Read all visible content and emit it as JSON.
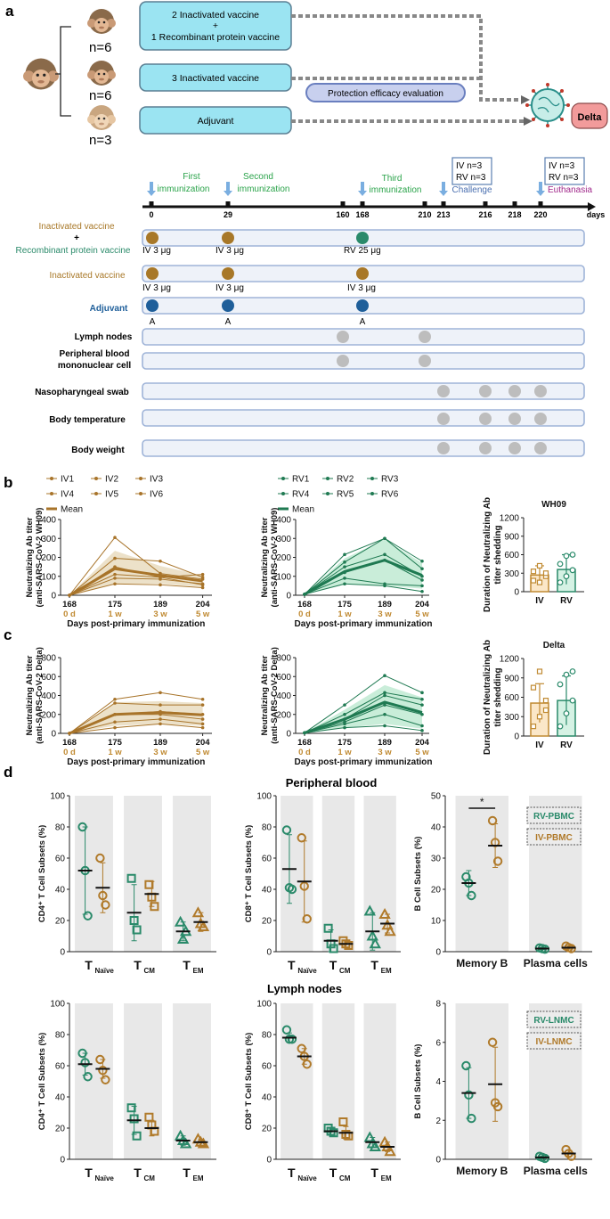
{
  "panels": {
    "a": "a",
    "b": "b",
    "c": "c",
    "d": "d"
  },
  "panel_a": {
    "groups": {
      "g1": "n=6",
      "g2": "n=6",
      "g3": "n=3"
    },
    "boxes": {
      "b1_line1": "2 Inactivated vaccine",
      "b1_line2": "+",
      "b1_line3": "1 Recombinant protein vaccine",
      "b2": "3 Inactivated vaccine",
      "b3": "Adjuvant",
      "protection": "Protection efficacy evaluation",
      "delta": "Delta"
    },
    "timeline": {
      "ticks": [
        "0",
        "29",
        "160",
        "168",
        "210",
        "213",
        "216",
        "218",
        "220",
        "days"
      ],
      "events": {
        "first_l1": "First",
        "first_l2": "immunization",
        "second_l1": "Second",
        "second_l2": "immunization",
        "third_l1": "Third",
        "third_l2": "immunization",
        "challenge": "Challenge",
        "euthanasia": "Euthanasia",
        "box1_l1": "IV n=3",
        "box1_l2": "RV n=3",
        "box2_l1": "IV n=3",
        "box2_l2": "RV n=3"
      }
    },
    "rows": {
      "r1_l1": "Inactivated vaccine",
      "r1_l2": "+",
      "r1_l3": "Recombinant protein vaccine",
      "r2": "Inactivated vaccine",
      "r3": "Adjuvant",
      "r4": "Lymph nodes",
      "r5_l1": "Peripheral blood",
      "r5_l2": "mononuclear cell",
      "r6": "Nasopharyngeal swab",
      "r7": "Body temperature",
      "r8": "Body weight"
    },
    "doses": {
      "iv3a": "IV 3 μg",
      "iv3b": "IV 3 μg",
      "rv25": "RV 25 μg",
      "iv3c": "IV 3 μg",
      "iv3d": "IV 3 μg",
      "iv3e": "IV 3 μg",
      "a1": "A",
      "a2": "A",
      "a3": "A"
    },
    "colors": {
      "inactivated": "#a87828",
      "recombinant": "#2a8a6a",
      "adjuvant": "#1f5f9a",
      "sample": "#bdbdbd"
    }
  },
  "legend_iv": [
    "IV1",
    "IV2",
    "IV3",
    "IV4",
    "IV5",
    "IV6"
  ],
  "legend_rv": [
    "RV1",
    "RV2",
    "RV3",
    "RV4",
    "RV5",
    "RV6"
  ],
  "mean_label": "Mean",
  "axes_text": {
    "ylabel_b": "Neutralizing Ab titer",
    "ylabel_b2": "(anti-SARS-CoV-2 WH09)",
    "ylabel_c": "Neutralizing Ab titer",
    "ylabel_c2": "(anti-SARS-CoV-2 Delta)",
    "xlabel": "Days post-primary immunization",
    "bar_ylabel1": "Duration of Neutralizing Ab",
    "bar_ylabel2": "titer shedding",
    "bar_title_b": "WH09",
    "bar_title_c": "Delta",
    "day_ticks": [
      "168",
      "175",
      "189",
      "204"
    ],
    "week_ticks": [
      "0 d",
      "1 w",
      "3 w",
      "5 w"
    ]
  },
  "panel_d_text": {
    "pb_title": "Peripheral blood",
    "ln_title": "Lymph nodes",
    "cd4": "CD4⁺ T Cell Subsets (%)",
    "cd8": "CD8⁺ T Cell Subsets (%)",
    "bcell": "B Cell Subsets (%)",
    "t_labels": [
      "T",
      "T",
      "T"
    ],
    "t_subs": [
      "Naïve",
      "CM",
      "EM"
    ],
    "b_cats": [
      "Memory B",
      "Plasma cells"
    ],
    "leg_rv_pbmc": "RV-PBMC",
    "leg_iv_pbmc": "IV-PBMC",
    "leg_rv_lnmc": "RV-LNMC",
    "leg_iv_lnmc": "IV-LNMC",
    "sig": "*"
  },
  "chart_data": [
    {
      "type": "line",
      "id": "b_iv",
      "title": "",
      "xlabel": "Days post-primary immunization",
      "ylabel": "Neutralizing Ab titer (anti-SARS-CoV-2 WH09)",
      "x": [
        168,
        175,
        189,
        204
      ],
      "ylim": [
        0,
        400
      ],
      "yticks": [
        0,
        100,
        200,
        300,
        400
      ],
      "series": [
        {
          "name": "IV1",
          "values": [
            0,
            305,
            115,
            85
          ]
        },
        {
          "name": "IV2",
          "values": [
            0,
            195,
            180,
            95
          ]
        },
        {
          "name": "IV3",
          "values": [
            0,
            150,
            95,
            110
          ]
        },
        {
          "name": "IV4",
          "values": [
            0,
            110,
            95,
            55
          ]
        },
        {
          "name": "IV5",
          "values": [
            0,
            90,
            85,
            60
          ]
        },
        {
          "name": "IV6",
          "values": [
            0,
            60,
            55,
            40
          ]
        }
      ],
      "mean": [
        0,
        140,
        105,
        75
      ],
      "band_upper": [
        0,
        235,
        155,
        105
      ],
      "band_lower": [
        0,
        60,
        60,
        45
      ]
    },
    {
      "type": "line",
      "id": "b_rv",
      "title": "",
      "xlabel": "Days post-primary immunization",
      "ylabel": "Neutralizing Ab titer (anti-SARS-CoV-2 WH09)",
      "x": [
        168,
        175,
        189,
        204
      ],
      "ylim": [
        0,
        400
      ],
      "yticks": [
        0,
        100,
        200,
        300,
        400
      ],
      "series": [
        {
          "name": "RV1",
          "values": [
            5,
            215,
            300,
            180
          ]
        },
        {
          "name": "RV2",
          "values": [
            5,
            175,
            300,
            140
          ]
        },
        {
          "name": "RV3",
          "values": [
            5,
            150,
            215,
            100
          ]
        },
        {
          "name": "RV4",
          "values": [
            5,
            120,
            185,
            80
          ]
        },
        {
          "name": "RV5",
          "values": [
            5,
            90,
            60,
            50
          ]
        },
        {
          "name": "RV6",
          "values": [
            5,
            60,
            50,
            20
          ]
        }
      ],
      "mean": [
        5,
        125,
        185,
        105
      ],
      "band_upper": [
        5,
        195,
        295,
        170
      ],
      "band_lower": [
        5,
        60,
        50,
        35
      ]
    },
    {
      "type": "bar",
      "id": "b_bar",
      "title": "WH09",
      "ylabel": "Duration of Neutralizing Ab titer shedding",
      "categories": [
        "IV",
        "RV"
      ],
      "values": [
        270,
        360
      ],
      "errors": [
        150,
        240
      ],
      "points": [
        [
          180,
          150,
          250,
          330,
          420,
          300
        ],
        [
          150,
          250,
          350,
          450,
          580,
          600
        ]
      ],
      "ylim": [
        0,
        1200
      ],
      "yticks": [
        0,
        300,
        600,
        900,
        1200
      ]
    },
    {
      "type": "line",
      "id": "c_iv",
      "title": "",
      "xlabel": "Days post-primary immunization",
      "ylabel": "Neutralizing Ab titer (anti-SARS-CoV-2 Delta)",
      "x": [
        168,
        175,
        189,
        204
      ],
      "ylim": [
        0,
        800
      ],
      "yticks": [
        0,
        200,
        400,
        600,
        800
      ],
      "series": [
        {
          "name": "IV1",
          "values": [
            0,
            360,
            430,
            360
          ]
        },
        {
          "name": "IV2",
          "values": [
            0,
            320,
            300,
            300
          ]
        },
        {
          "name": "IV3",
          "values": [
            0,
            200,
            230,
            200
          ]
        },
        {
          "name": "IV4",
          "values": [
            0,
            200,
            200,
            150
          ]
        },
        {
          "name": "IV5",
          "values": [
            0,
            120,
            150,
            100
          ]
        },
        {
          "name": "IV6",
          "values": [
            0,
            60,
            100,
            60
          ]
        }
      ],
      "mean": [
        0,
        200,
        220,
        195
      ],
      "band_upper": [
        0,
        330,
        340,
        320
      ],
      "band_lower": [
        0,
        80,
        100,
        80
      ]
    },
    {
      "type": "line",
      "id": "c_rv",
      "title": "",
      "xlabel": "Days post-primary immunization",
      "ylabel": "Neutralizing Ab titer (anti-SARS-CoV-2 Delta)",
      "x": [
        168,
        175,
        189,
        204
      ],
      "ylim": [
        0,
        800
      ],
      "yticks": [
        0,
        200,
        400,
        600,
        800
      ],
      "series": [
        {
          "name": "RV1",
          "values": [
            5,
            300,
            610,
            430
          ]
        },
        {
          "name": "RV2",
          "values": [
            5,
            200,
            430,
            360
          ]
        },
        {
          "name": "RV3",
          "values": [
            5,
            150,
            400,
            300
          ]
        },
        {
          "name": "RV4",
          "values": [
            5,
            120,
            300,
            200
          ]
        },
        {
          "name": "RV5",
          "values": [
            5,
            100,
            200,
            80
          ]
        },
        {
          "name": "RV6",
          "values": [
            5,
            60,
            80,
            30
          ]
        }
      ],
      "mean": [
        5,
        150,
        330,
        220
      ],
      "band_upper": [
        5,
        250,
        510,
        380
      ],
      "band_lower": [
        5,
        60,
        100,
        50
      ]
    },
    {
      "type": "bar",
      "id": "c_bar",
      "title": "Delta",
      "ylabel": "Duration of Neutralizing Ab titer shedding",
      "categories": [
        "IV",
        "RV"
      ],
      "values": [
        510,
        550
      ],
      "errors": [
        300,
        380
      ],
      "points": [
        [
          150,
          300,
          550,
          750,
          1000,
          400
        ],
        [
          150,
          350,
          550,
          800,
          950,
          1000
        ]
      ],
      "ylim": [
        0,
        1200
      ],
      "yticks": [
        0,
        300,
        600,
        900,
        1200
      ]
    },
    {
      "type": "scatter",
      "id": "d_pb_cd4",
      "ylabel": "CD4⁺ T Cell Subsets (%)",
      "categories": [
        "TNaïve",
        "TCM",
        "TEM"
      ],
      "ylim": [
        0,
        100
      ],
      "yticks": [
        0,
        20,
        40,
        60,
        80,
        100
      ],
      "series": [
        {
          "name": "RV-PBMC",
          "points": [
            [
              80,
              52,
              23
            ],
            [
              47,
              20,
              14
            ],
            [
              19,
              8,
              13
            ]
          ],
          "mean": [
            52,
            25,
            13
          ],
          "sd": [
            28,
            18,
            6
          ]
        },
        {
          "name": "IV-PBMC",
          "points": [
            [
              60,
              36,
              30
            ],
            [
              43,
              35,
              29
            ],
            [
              25,
              18,
              16
            ]
          ],
          "mean": [
            41,
            37,
            19
          ],
          "sd": [
            16,
            8,
            6
          ]
        }
      ]
    },
    {
      "type": "scatter",
      "id": "d_pb_cd8",
      "ylabel": "CD8⁺ T Cell Subsets (%)",
      "categories": [
        "TNaïve",
        "TCM",
        "TEM"
      ],
      "ylim": [
        0,
        100
      ],
      "yticks": [
        0,
        20,
        40,
        60,
        80,
        100
      ],
      "series": [
        {
          "name": "RV-PBMC",
          "points": [
            [
              78,
              41,
              40
            ],
            [
              15,
              5,
              2
            ],
            [
              26,
              10,
              5
            ]
          ],
          "mean": [
            53,
            7,
            13
          ],
          "sd": [
            22,
            7,
            12
          ]
        },
        {
          "name": "IV-PBMC",
          "points": [
            [
              73,
              42,
              21
            ],
            [
              7,
              5,
              4
            ],
            [
              24,
              17,
              13
            ]
          ],
          "mean": [
            45,
            5,
            18
          ],
          "sd": [
            26,
            2,
            6
          ]
        }
      ]
    },
    {
      "type": "scatter",
      "id": "d_pb_b",
      "ylabel": "B Cell Subsets (%)",
      "categories": [
        "Memory B",
        "Plasma cells"
      ],
      "ylim": [
        0,
        50
      ],
      "yticks": [
        0,
        10,
        20,
        30,
        40,
        50
      ],
      "series": [
        {
          "name": "RV-PBMC",
          "points": [
            [
              24,
              22,
              18
            ],
            [
              1.2,
              1,
              0.8
            ]
          ],
          "mean": [
            22,
            1
          ],
          "sd": [
            4,
            0.3
          ]
        },
        {
          "name": "IV-PBMC",
          "points": [
            [
              42,
              35,
              29
            ],
            [
              1.8,
              1.3,
              1
            ]
          ],
          "mean": [
            34,
            1.3
          ],
          "sd": [
            7,
            0.5
          ]
        }
      ],
      "significance": "*"
    },
    {
      "type": "scatter",
      "id": "d_ln_cd4",
      "ylabel": "CD4⁺ T Cell Subsets (%)",
      "categories": [
        "TNaïve",
        "TCM",
        "TEM"
      ],
      "ylim": [
        0,
        100
      ],
      "yticks": [
        0,
        20,
        40,
        60,
        80,
        100
      ],
      "series": [
        {
          "name": "RV-LNMC",
          "points": [
            [
              68,
              62,
              53
            ],
            [
              33,
              26,
              15
            ],
            [
              15,
              12,
              10
            ]
          ],
          "mean": [
            61,
            25,
            12
          ],
          "sd": [
            7,
            9,
            3
          ]
        },
        {
          "name": "IV-LNMC",
          "points": [
            [
              64,
              57,
              51
            ],
            [
              27,
              22,
              18
            ],
            [
              13,
              11,
              10
            ]
          ],
          "mean": [
            58,
            20,
            11
          ],
          "sd": [
            6,
            5,
            2
          ]
        }
      ]
    },
    {
      "type": "scatter",
      "id": "d_ln_cd8",
      "ylabel": "CD8⁺ T Cell Subsets (%)",
      "categories": [
        "TNaïve",
        "TCM",
        "TEM"
      ],
      "ylim": [
        0,
        100
      ],
      "yticks": [
        0,
        20,
        40,
        60,
        80,
        100
      ],
      "series": [
        {
          "name": "RV-LNMC",
          "points": [
            [
              83,
              77,
              77
            ],
            [
              20,
              18,
              17
            ],
            [
              14,
              10,
              8
            ]
          ],
          "mean": [
            78,
            18,
            11
          ],
          "sd": [
            3,
            2,
            3
          ]
        },
        {
          "name": "IV-LNMC",
          "points": [
            [
              71,
              66,
              61
            ],
            [
              24,
              16,
              15
            ],
            [
              11,
              8,
              5
            ]
          ],
          "mean": [
            66,
            17,
            8
          ],
          "sd": [
            5,
            4,
            3
          ]
        }
      ]
    },
    {
      "type": "scatter",
      "id": "d_ln_b",
      "ylabel": "B Cell Subsets (%)",
      "categories": [
        "Memory B",
        "Plasma cells"
      ],
      "ylim": [
        0,
        8
      ],
      "yticks": [
        0,
        2,
        4,
        6,
        8
      ],
      "series": [
        {
          "name": "RV-LNMC",
          "points": [
            [
              4.8,
              3.3,
              2.1
            ],
            [
              0.15,
              0.1,
              0.05
            ]
          ],
          "mean": [
            3.4,
            0.1
          ],
          "sd": [
            1.3,
            0.05
          ]
        },
        {
          "name": "IV-LNMC",
          "points": [
            [
              6,
              2.9,
              2.7
            ],
            [
              0.5,
              0.3,
              0.15
            ]
          ],
          "mean": [
            3.85,
            0.3
          ],
          "sd": [
            1.9,
            0.15
          ]
        }
      ]
    }
  ]
}
